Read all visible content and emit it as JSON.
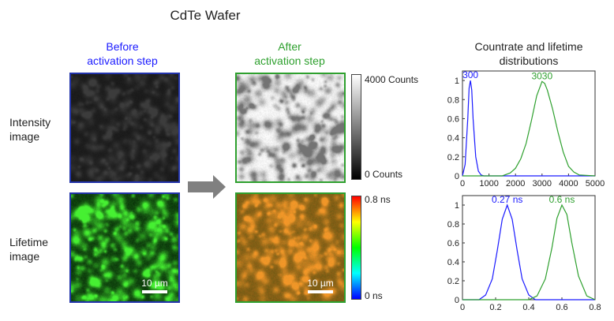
{
  "title": "CdTe Wafer",
  "columns": {
    "before": "Before\nactivation step",
    "after": "After\nactivation step"
  },
  "rows": {
    "intensity": "Intensity\nimage",
    "lifetime": "Lifetime\nimage"
  },
  "scalebar_label": "10 µm",
  "intensity_colorbar": {
    "max_label": "4000 Counts",
    "min_label": "0 Counts"
  },
  "lifetime_colorbar": {
    "max_label": "0.8 ns",
    "min_label": "0 ns"
  },
  "distributions_title": "Countrate and lifetime\ndistributions",
  "colors": {
    "before": "#1a1aff",
    "after": "#2ea02e"
  },
  "chart_data": [
    {
      "type": "line",
      "xlim": [
        0,
        5000
      ],
      "ylim": [
        0,
        1.1
      ],
      "x_ticks": [
        "0",
        "1000",
        "2000",
        "3000",
        "4000",
        "5000"
      ],
      "y_ticks": [
        "0",
        "0.2",
        "0.4",
        "0.6",
        "0.8",
        "1"
      ],
      "series": [
        {
          "peak_label": "300",
          "color": "#1a1aff",
          "x": [
            0,
            100,
            200,
            250,
            300,
            350,
            400,
            500,
            600,
            700,
            800,
            1000,
            5000
          ],
          "y": [
            0.0,
            0.12,
            0.6,
            0.92,
            1.0,
            0.9,
            0.6,
            0.2,
            0.05,
            0.01,
            0.0,
            0.0,
            0.0
          ]
        },
        {
          "peak_label": "3030",
          "color": "#2ea02e",
          "x": [
            0,
            1500,
            1800,
            2000,
            2200,
            2400,
            2600,
            2800,
            3000,
            3100,
            3200,
            3400,
            3600,
            3800,
            4000,
            4200,
            4400,
            5000
          ],
          "y": [
            0.0,
            0.0,
            0.03,
            0.08,
            0.18,
            0.34,
            0.58,
            0.84,
            0.99,
            0.97,
            0.9,
            0.7,
            0.46,
            0.25,
            0.1,
            0.04,
            0.01,
            0.0
          ]
        }
      ]
    },
    {
      "type": "line",
      "xlim": [
        0,
        0.8
      ],
      "ylim": [
        0,
        1.1
      ],
      "x_ticks": [
        "0",
        "0.2",
        "0.4",
        "0.6",
        "0.8"
      ],
      "y_ticks": [
        "0",
        "0.2",
        "0.4",
        "0.6",
        "0.8",
        "1"
      ],
      "series": [
        {
          "peak_label": "0.27 ns",
          "color": "#1a1aff",
          "x": [
            0.0,
            0.1,
            0.14,
            0.18,
            0.21,
            0.24,
            0.27,
            0.3,
            0.33,
            0.36,
            0.4,
            0.44,
            0.8
          ],
          "y": [
            0.0,
            0.0,
            0.05,
            0.22,
            0.52,
            0.85,
            1.0,
            0.85,
            0.52,
            0.22,
            0.05,
            0.0,
            0.0
          ]
        },
        {
          "peak_label": "0.6 ns",
          "color": "#2ea02e",
          "x": [
            0.0,
            0.4,
            0.45,
            0.5,
            0.54,
            0.57,
            0.6,
            0.63,
            0.66,
            0.7,
            0.75,
            0.8
          ],
          "y": [
            0.0,
            0.0,
            0.04,
            0.22,
            0.55,
            0.86,
            1.0,
            0.9,
            0.6,
            0.25,
            0.04,
            0.0
          ]
        }
      ]
    }
  ]
}
